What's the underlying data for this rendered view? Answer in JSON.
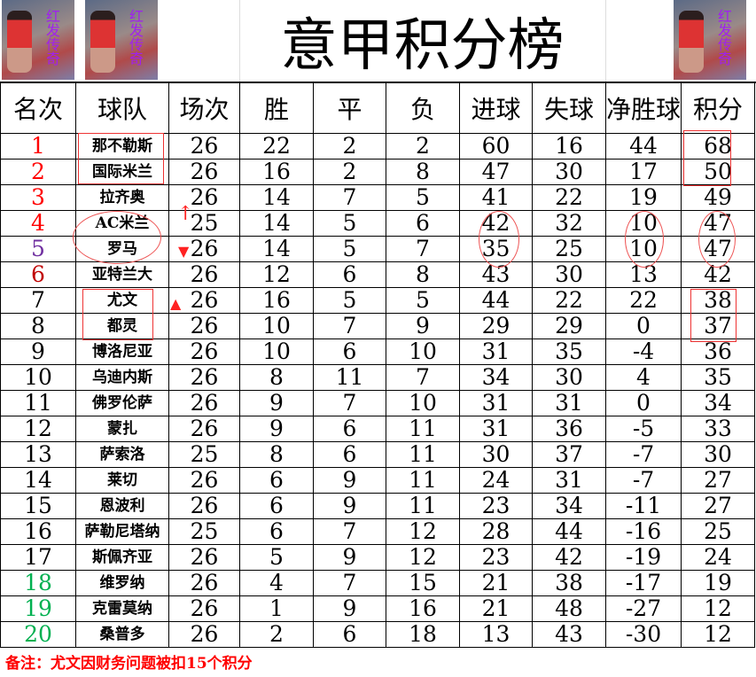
{
  "title": "意甲积分榜",
  "headers": [
    "名次",
    "球队",
    "场次",
    "胜",
    "平",
    "负",
    "进球",
    "失球",
    "净胜球",
    "积分"
  ],
  "rank_colors": {
    "top": "#ff0000",
    "fifth": "#7030a0",
    "sixth": "#c00000",
    "normal": "#000000",
    "relegation": "#00b050"
  },
  "rows": [
    [
      "1",
      "那不勒斯",
      "26",
      "22",
      "2",
      "2",
      "60",
      "16",
      "44",
      "68"
    ],
    [
      "2",
      "国际米兰",
      "26",
      "16",
      "2",
      "8",
      "47",
      "30",
      "17",
      "50"
    ],
    [
      "3",
      "拉齐奥",
      "26",
      "14",
      "7",
      "5",
      "41",
      "22",
      "19",
      "49"
    ],
    [
      "4",
      "AC米兰",
      "25",
      "14",
      "5",
      "6",
      "42",
      "32",
      "10",
      "47"
    ],
    [
      "5",
      "罗马",
      "26",
      "14",
      "5",
      "7",
      "35",
      "25",
      "10",
      "47"
    ],
    [
      "6",
      "亚特兰大",
      "26",
      "12",
      "6",
      "8",
      "43",
      "30",
      "13",
      "42"
    ],
    [
      "7",
      "尤文",
      "26",
      "16",
      "5",
      "5",
      "44",
      "22",
      "22",
      "38"
    ],
    [
      "8",
      "都灵",
      "26",
      "10",
      "7",
      "9",
      "29",
      "29",
      "0",
      "37"
    ],
    [
      "9",
      "博洛尼亚",
      "26",
      "10",
      "6",
      "10",
      "31",
      "35",
      "-4",
      "36"
    ],
    [
      "10",
      "乌迪内斯",
      "26",
      "8",
      "11",
      "7",
      "34",
      "30",
      "4",
      "35"
    ],
    [
      "11",
      "佛罗伦萨",
      "26",
      "9",
      "7",
      "10",
      "31",
      "31",
      "0",
      "34"
    ],
    [
      "12",
      "蒙扎",
      "26",
      "9",
      "6",
      "11",
      "31",
      "36",
      "-5",
      "33"
    ],
    [
      "13",
      "萨索洛",
      "25",
      "8",
      "6",
      "11",
      "30",
      "37",
      "-7",
      "30"
    ],
    [
      "14",
      "莱切",
      "26",
      "6",
      "9",
      "11",
      "24",
      "31",
      "-7",
      "27"
    ],
    [
      "15",
      "恩波利",
      "26",
      "6",
      "9",
      "11",
      "23",
      "34",
      "-11",
      "27"
    ],
    [
      "16",
      "萨勒尼塔纳",
      "25",
      "6",
      "7",
      "12",
      "28",
      "44",
      "-16",
      "25"
    ],
    [
      "17",
      "斯佩齐亚",
      "26",
      "5",
      "9",
      "12",
      "23",
      "42",
      "-19",
      "24"
    ],
    [
      "18",
      "维罗纳",
      "26",
      "4",
      "7",
      "15",
      "21",
      "38",
      "-17",
      "19"
    ],
    [
      "19",
      "克雷莫纳",
      "26",
      "1",
      "9",
      "16",
      "21",
      "48",
      "-27",
      "12"
    ],
    [
      "20",
      "桑普多",
      "26",
      "2",
      "6",
      "18",
      "13",
      "43",
      "-30",
      "12"
    ]
  ],
  "note": "备注：尤文因财务问题被扣15个积分",
  "banner_text": "红发传奇"
}
